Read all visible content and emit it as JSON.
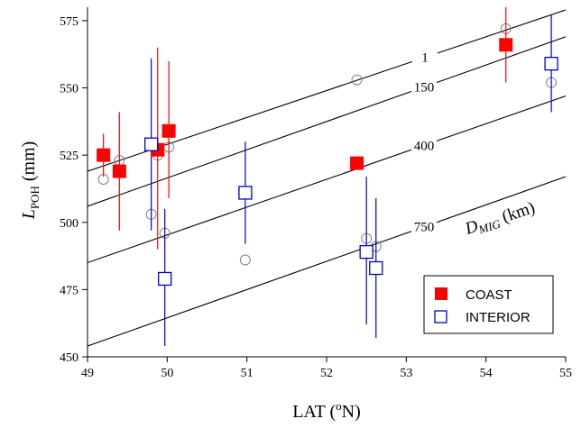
{
  "chart_data": {
    "type": "scatter",
    "xlabel": "LAT (",
    "xlabel_sup": "o",
    "xlabel_suffix": "N)",
    "ylabel": "L",
    "ylabel_sub": "POH",
    "ylabel_suffix": " (mm)",
    "xlim": [
      49,
      55
    ],
    "ylim": [
      450,
      580
    ],
    "xticks": [
      49,
      50,
      51,
      52,
      53,
      54,
      55
    ],
    "yticks": [
      450,
      475,
      500,
      525,
      550,
      575
    ],
    "grid": false,
    "legend_position": "bottom-right",
    "legend": [
      {
        "label": "COAST",
        "marker": "filled-square",
        "color": "#ff0000"
      },
      {
        "label": "INTERIOR",
        "marker": "open-square",
        "color": "#0000cc"
      }
    ],
    "dmig_annotation": {
      "main": "D",
      "sub": "MIG",
      "suffix": " (km)"
    },
    "dmig_lines": [
      {
        "label": "1",
        "x": [
          49,
          55
        ],
        "y": [
          519,
          579
        ]
      },
      {
        "label": "150",
        "x": [
          49,
          55
        ],
        "y": [
          506,
          569
        ]
      },
      {
        "label": "400",
        "x": [
          49,
          55
        ],
        "y": [
          485,
          547
        ]
      },
      {
        "label": "750",
        "x": [
          49,
          55
        ],
        "y": [
          454,
          517
        ]
      }
    ],
    "series": [
      {
        "name": "COAST",
        "marker": "filled-square",
        "color": "#ff0000",
        "points": [
          {
            "x": 49.2,
            "y": 525,
            "ylo": 517,
            "yhi": 533
          },
          {
            "x": 49.4,
            "y": 519,
            "ylo": 497,
            "yhi": 541
          },
          {
            "x": 49.88,
            "y": 527,
            "ylo": 490,
            "yhi": 565
          },
          {
            "x": 50.02,
            "y": 534,
            "ylo": 509,
            "yhi": 560
          },
          {
            "x": 52.38,
            "y": 522,
            "ylo": 522,
            "yhi": 522
          },
          {
            "x": 54.25,
            "y": 566,
            "ylo": 552,
            "yhi": 580
          }
        ]
      },
      {
        "name": "INTERIOR",
        "marker": "open-square",
        "color": "#0000cc",
        "points": [
          {
            "x": 49.8,
            "y": 529,
            "ylo": 497,
            "yhi": 561
          },
          {
            "x": 49.97,
            "y": 479,
            "ylo": 454,
            "yhi": 505
          },
          {
            "x": 50.98,
            "y": 511,
            "ylo": 492,
            "yhi": 530
          },
          {
            "x": 52.5,
            "y": 489,
            "ylo": 462,
            "yhi": 517
          },
          {
            "x": 52.62,
            "y": 483,
            "ylo": 457,
            "yhi": 509
          },
          {
            "x": 54.82,
            "y": 559,
            "ylo": 541,
            "yhi": 577
          }
        ]
      },
      {
        "marker": "open-circle",
        "color": "#808080",
        "points": [
          {
            "x": 49.2,
            "y": 516
          },
          {
            "x": 49.4,
            "y": 523
          },
          {
            "x": 49.8,
            "y": 503
          },
          {
            "x": 49.88,
            "y": 525
          },
          {
            "x": 49.97,
            "y": 496
          },
          {
            "x": 50.02,
            "y": 528
          },
          {
            "x": 50.98,
            "y": 486
          },
          {
            "x": 52.38,
            "y": 553
          },
          {
            "x": 52.5,
            "y": 494
          },
          {
            "x": 52.62,
            "y": 491
          },
          {
            "x": 54.25,
            "y": 572
          },
          {
            "x": 54.82,
            "y": 552
          }
        ]
      }
    ]
  }
}
